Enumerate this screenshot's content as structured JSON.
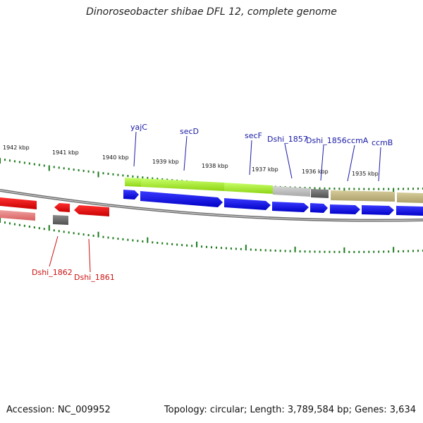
{
  "title": "Dinoroseobacter shibae DFL 12, complete genome",
  "footer": {
    "accession": "Accession: NC_009952",
    "stats": "Topology: circular; Length: 3,789,584 bp; Genes: 3,634"
  },
  "colors": {
    "forward_gene": "#0000ee",
    "reverse_gene": "#ee0000",
    "forward_label": "#1a1aa6",
    "reverse_label": "#cc1111",
    "tick": "#1a7a1a",
    "backbone": "#777777"
  },
  "ruler_labels": [
    "1942 kbp",
    "1941 kbp",
    "1940 kbp",
    "1939 kbp",
    "1938 kbp",
    "1937 kbp",
    "1936 kbp",
    "1935 kbp"
  ],
  "forward_genes": [
    "yajC",
    "secD",
    "secF",
    "Dshi_1857",
    "Dshi_1856",
    "ccmA",
    "ccmB"
  ],
  "reverse_genes": [
    "Dshi_1862",
    "Dshi_1861"
  ]
}
